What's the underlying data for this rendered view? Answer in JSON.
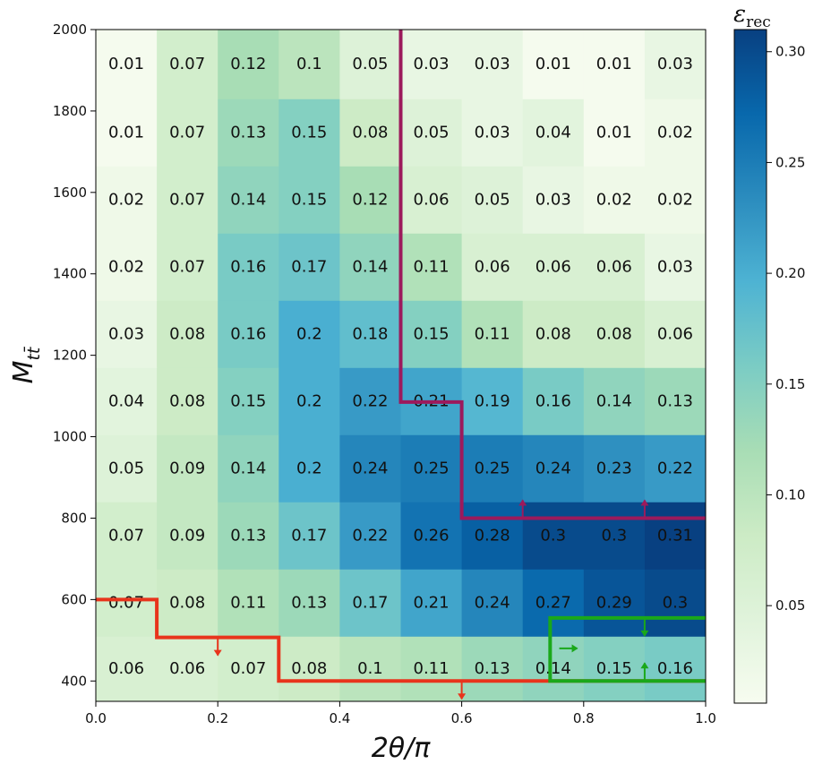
{
  "chart_data": {
    "type": "heatmap",
    "title": "",
    "xlabel": "2θ/π",
    "ylabel": "M_tt̄",
    "xlim": [
      0.0,
      1.0
    ],
    "ylim": [
      350,
      2000
    ],
    "x_ticks": [
      0.0,
      0.2,
      0.4,
      0.6,
      0.8,
      1.0
    ],
    "x_tick_labels": [
      "0.0",
      "0.2",
      "0.4",
      "0.6",
      "0.8",
      "1.0"
    ],
    "y_ticks": [
      400,
      600,
      800,
      1000,
      1200,
      1400,
      1600,
      1800,
      2000
    ],
    "y_tick_labels": [
      "400",
      "600",
      "800",
      "1000",
      "1200",
      "1400",
      "1600",
      "1800",
      "2000"
    ],
    "x_bin_edges": [
      0.0,
      0.1,
      0.2,
      0.3,
      0.4,
      0.5,
      0.6,
      0.7,
      0.8,
      0.9,
      1.0
    ],
    "y_bin_edges": [
      350,
      510,
      675,
      840,
      1005,
      1170,
      1335,
      1500,
      1665,
      1830,
      2000
    ],
    "values": [
      [
        0.06,
        0.06,
        0.07,
        0.08,
        0.1,
        0.11,
        0.13,
        0.14,
        0.15,
        0.16
      ],
      [
        0.07,
        0.08,
        0.11,
        0.13,
        0.17,
        0.21,
        0.24,
        0.27,
        0.29,
        0.3
      ],
      [
        0.07,
        0.09,
        0.13,
        0.17,
        0.22,
        0.26,
        0.28,
        0.3,
        0.3,
        0.31
      ],
      [
        0.05,
        0.09,
        0.14,
        0.2,
        0.24,
        0.25,
        0.25,
        0.24,
        0.23,
        0.22
      ],
      [
        0.04,
        0.08,
        0.15,
        0.2,
        0.22,
        0.21,
        0.19,
        0.16,
        0.14,
        0.13
      ],
      [
        0.03,
        0.08,
        0.16,
        0.2,
        0.18,
        0.15,
        0.11,
        0.08,
        0.08,
        0.06
      ],
      [
        0.02,
        0.07,
        0.16,
        0.17,
        0.14,
        0.11,
        0.06,
        0.06,
        0.06,
        0.03
      ],
      [
        0.02,
        0.07,
        0.14,
        0.15,
        0.12,
        0.06,
        0.05,
        0.03,
        0.02,
        0.02
      ],
      [
        0.01,
        0.07,
        0.13,
        0.15,
        0.08,
        0.05,
        0.03,
        0.04,
        0.01,
        0.02
      ],
      [
        0.01,
        0.07,
        0.12,
        0.1,
        0.05,
        0.03,
        0.03,
        0.01,
        0.01,
        0.03
      ]
    ],
    "labels": [
      [
        "0.06",
        "0.06",
        "0.07",
        "0.08",
        "0.1",
        "0.11",
        "0.13",
        "0.14",
        "0.15",
        "0.16"
      ],
      [
        "0.07",
        "0.08",
        "0.11",
        "0.13",
        "0.17",
        "0.21",
        "0.24",
        "0.27",
        "0.29",
        "0.3"
      ],
      [
        "0.07",
        "0.09",
        "0.13",
        "0.17",
        "0.22",
        "0.26",
        "0.28",
        "0.3",
        "0.3",
        "0.31"
      ],
      [
        "0.05",
        "0.09",
        "0.14",
        "0.2",
        "0.24",
        "0.25",
        "0.25",
        "0.24",
        "0.23",
        "0.22"
      ],
      [
        "0.04",
        "0.08",
        "0.15",
        "0.2",
        "0.22",
        "0.21",
        "0.19",
        "0.16",
        "0.14",
        "0.13"
      ],
      [
        "0.03",
        "0.08",
        "0.16",
        "0.2",
        "0.18",
        "0.15",
        "0.11",
        "0.08",
        "0.08",
        "0.06"
      ],
      [
        "0.02",
        "0.07",
        "0.16",
        "0.17",
        "0.14",
        "0.11",
        "0.06",
        "0.06",
        "0.06",
        "0.03"
      ],
      [
        "0.02",
        "0.07",
        "0.14",
        "0.15",
        "0.12",
        "0.06",
        "0.05",
        "0.03",
        "0.02",
        "0.02"
      ],
      [
        "0.01",
        "0.07",
        "0.13",
        "0.15",
        "0.08",
        "0.05",
        "0.03",
        "0.04",
        "0.01",
        "0.02"
      ],
      [
        "0.01",
        "0.07",
        "0.12",
        "0.1",
        "0.05",
        "0.03",
        "0.03",
        "0.01",
        "0.01",
        "0.03"
      ]
    ],
    "colorbar": {
      "title": "ε_rec",
      "min": 0.006,
      "max": 0.31,
      "ticks": [
        0.05,
        0.1,
        0.15,
        0.2,
        0.25,
        0.3
      ],
      "tick_labels": [
        "0.05",
        "0.10",
        "0.15",
        "0.20",
        "0.25",
        "0.30"
      ],
      "colormap": "GnBu",
      "stops": [
        "#f7fcf0",
        "#e0f3db",
        "#ccebc5",
        "#a8ddb5",
        "#7bccc4",
        "#4eb3d3",
        "#2b8cbe",
        "#0868ac",
        "#084081"
      ]
    },
    "overlay_lines": [
      {
        "name": "purple-boundary",
        "color": "#9c1a5c",
        "points": [
          [
            0.5,
            2000
          ],
          [
            0.5,
            1085
          ],
          [
            0.6,
            1085
          ],
          [
            0.6,
            800
          ],
          [
            1.0,
            800
          ]
        ],
        "arrows": [
          {
            "x": 0.7,
            "y": 800,
            "direction": "up"
          },
          {
            "x": 0.9,
            "y": 800,
            "direction": "up"
          }
        ]
      },
      {
        "name": "red-boundary",
        "color": "#e8341c",
        "points": [
          [
            0.0,
            600
          ],
          [
            0.1,
            600
          ],
          [
            0.1,
            507
          ],
          [
            0.3,
            507
          ],
          [
            0.3,
            400
          ],
          [
            1.0,
            400
          ]
        ],
        "arrows": [
          {
            "x": 0.2,
            "y": 507,
            "direction": "down"
          },
          {
            "x": 0.6,
            "y": 400,
            "direction": "down"
          }
        ]
      },
      {
        "name": "green-boundary",
        "color": "#1aa81a",
        "points": [
          [
            1.0,
            555
          ],
          [
            0.745,
            555
          ],
          [
            0.745,
            400
          ],
          [
            1.0,
            400
          ]
        ],
        "arrows": [
          {
            "x": 0.76,
            "y": 480,
            "direction": "right"
          },
          {
            "x": 0.9,
            "y": 555,
            "direction": "down"
          },
          {
            "x": 0.9,
            "y": 400,
            "direction": "up"
          }
        ]
      }
    ]
  }
}
